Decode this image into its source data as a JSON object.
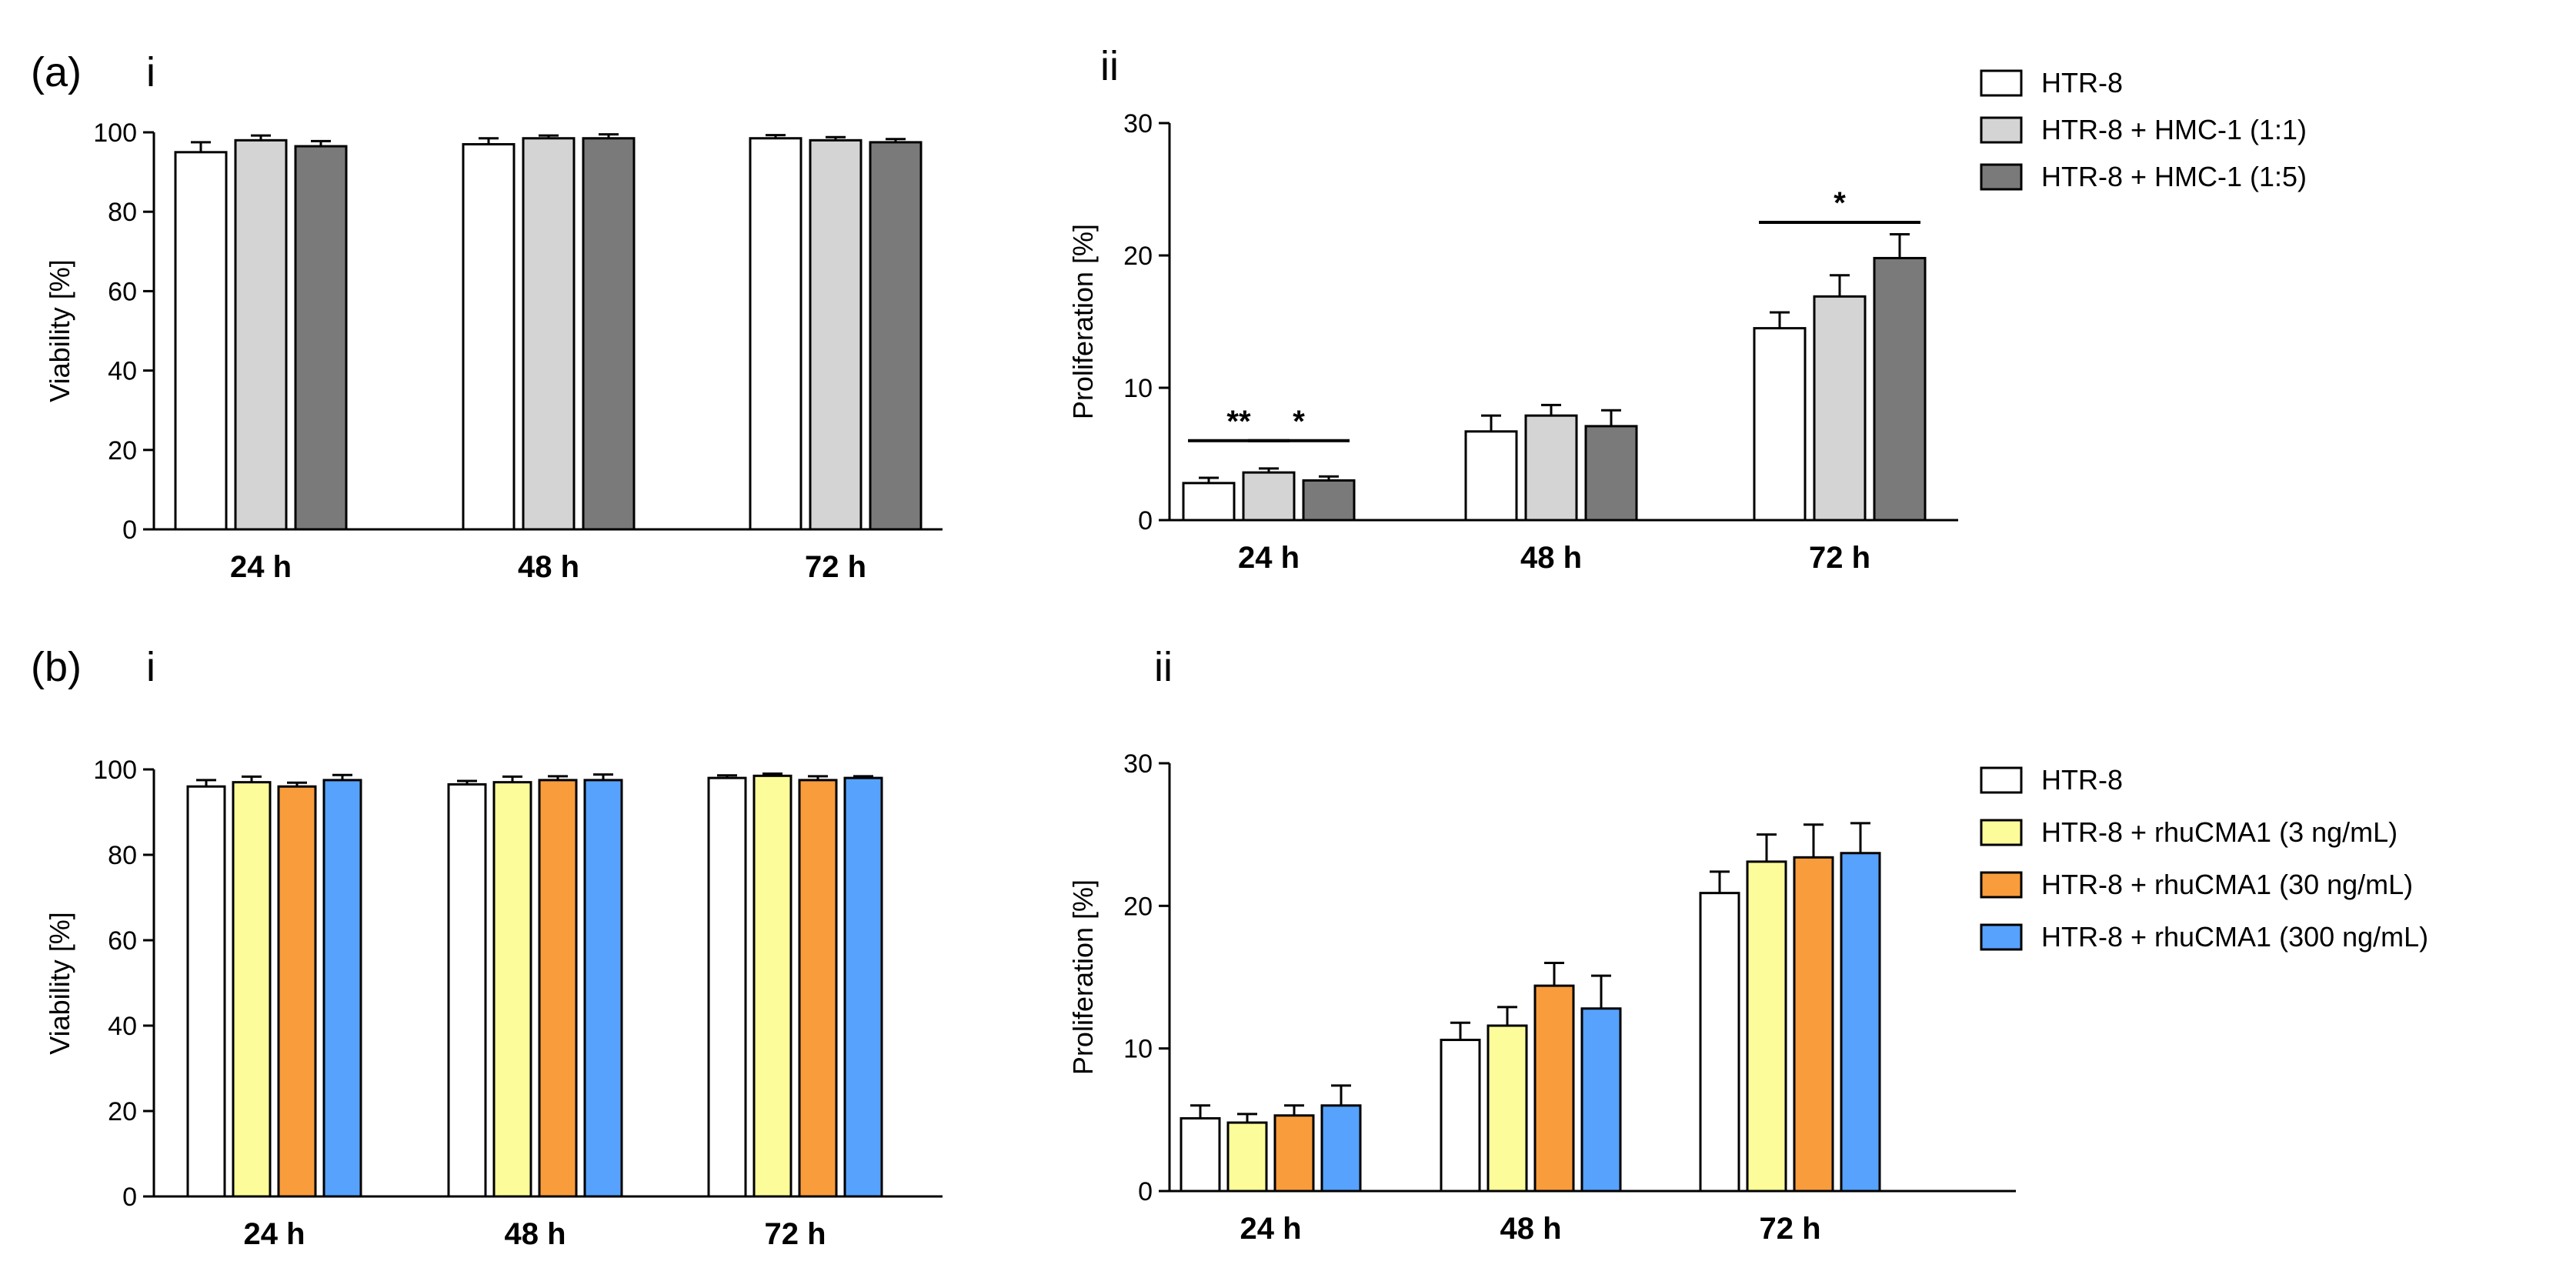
{
  "labels": {
    "a": "(a)",
    "b": "(b)",
    "sub_i": "i",
    "sub_ii": "ii"
  },
  "colors": {
    "htr8": "#ffffff",
    "hmc_1_1": "#d4d4d4",
    "hmc_1_5": "#7a7a7a",
    "rhu_3": "#fcfc9a",
    "rhu_30": "#f99c3c",
    "rhu_300": "#56a2fc",
    "stroke": "#000000"
  },
  "chart_data": [
    {
      "id": "a-i",
      "type": "bar",
      "title": "",
      "xlabel": "",
      "ylabel": "Viability [%]",
      "ylim": [
        0,
        100
      ],
      "yticks": [
        0,
        20,
        40,
        60,
        80,
        100
      ],
      "grid": false,
      "categories": [
        "24 h",
        "48 h",
        "72 h"
      ],
      "series": [
        {
          "name": "HTR-8",
          "colorKey": "htr8",
          "values": [
            95,
            97,
            98.5
          ],
          "errors": [
            2.5,
            1.5,
            0.8
          ]
        },
        {
          "name": "HTR-8 + HMC-1 (1:1)",
          "colorKey": "hmc_1_1",
          "values": [
            98,
            98.5,
            98
          ],
          "errors": [
            1.2,
            0.7,
            0.8
          ]
        },
        {
          "name": "HTR-8 + HMC-1 (1:5)",
          "colorKey": "hmc_1_5",
          "values": [
            96.5,
            98.5,
            97.5
          ],
          "errors": [
            1.3,
            1.0,
            0.8
          ]
        }
      ],
      "significance": [],
      "legend": null
    },
    {
      "id": "a-ii",
      "type": "bar",
      "title": "",
      "xlabel": "",
      "ylabel": "Proliferation [%]",
      "ylim": [
        0,
        30
      ],
      "yticks": [
        0,
        10,
        20,
        30
      ],
      "grid": false,
      "categories": [
        "24 h",
        "48 h",
        "72 h"
      ],
      "series": [
        {
          "name": "HTR-8",
          "colorKey": "htr8",
          "values": [
            2.8,
            6.7,
            14.5
          ],
          "errors": [
            0.4,
            1.2,
            1.2
          ]
        },
        {
          "name": "HTR-8 + HMC-1 (1:1)",
          "colorKey": "hmc_1_1",
          "values": [
            3.6,
            7.9,
            16.9
          ],
          "errors": [
            0.3,
            0.8,
            1.6
          ]
        },
        {
          "name": "HTR-8 + HMC-1 (1:5)",
          "colorKey": "hmc_1_5",
          "values": [
            3.0,
            7.1,
            19.8
          ],
          "errors": [
            0.3,
            1.2,
            1.8
          ]
        }
      ],
      "significance": [
        {
          "label": "**",
          "category": 0,
          "from": 0,
          "to": 1,
          "y": 6.0
        },
        {
          "label": "*",
          "category": 0,
          "from": 1,
          "to": 2,
          "y": 6.0
        },
        {
          "label": "*",
          "category": 2,
          "from": 0,
          "to": 2,
          "y": 22.5
        }
      ],
      "legend": {
        "placement": "top-right",
        "entries": [
          "HTR-8",
          "HTR-8 + HMC-1 (1:1)",
          "HTR-8 + HMC-1 (1:5)"
        ]
      }
    },
    {
      "id": "b-i",
      "type": "bar",
      "title": "",
      "xlabel": "",
      "ylabel": "Viability [%]",
      "ylim": [
        0,
        100
      ],
      "yticks": [
        0,
        20,
        40,
        60,
        80,
        100
      ],
      "grid": false,
      "categories": [
        "24 h",
        "48 h",
        "72 h"
      ],
      "series": [
        {
          "name": "HTR-8",
          "colorKey": "htr8",
          "values": [
            96,
            96.5,
            98
          ],
          "errors": [
            1.5,
            0.8,
            0.6
          ]
        },
        {
          "name": "HTR-8 + rhuCMA1 (3 ng/mL)",
          "colorKey": "rhu_3",
          "values": [
            97,
            97,
            98.5
          ],
          "errors": [
            1.3,
            1.3,
            0.5
          ]
        },
        {
          "name": "HTR-8 + rhuCMA1 (30 ng/mL)",
          "colorKey": "rhu_30",
          "values": [
            96,
            97.5,
            97.5
          ],
          "errors": [
            0.9,
            0.9,
            0.9
          ]
        },
        {
          "name": "HTR-8 + rhuCMA1 (300 ng/mL)",
          "colorKey": "rhu_300",
          "values": [
            97.5,
            97.5,
            98
          ],
          "errors": [
            1.2,
            1.3,
            0.4
          ]
        }
      ],
      "significance": [],
      "legend": null
    },
    {
      "id": "b-ii",
      "type": "bar",
      "title": "",
      "xlabel": "",
      "ylabel": "Proliferation  [%]",
      "ylim": [
        0,
        30
      ],
      "yticks": [
        0,
        10,
        20,
        30
      ],
      "grid": false,
      "categories": [
        "24 h",
        "48 h",
        "72 h"
      ],
      "series": [
        {
          "name": "HTR-8",
          "colorKey": "htr8",
          "values": [
            5.1,
            10.6,
            20.9
          ],
          "errors": [
            0.9,
            1.2,
            1.5
          ]
        },
        {
          "name": "HTR-8 + rhuCMA1 (3 ng/mL)",
          "colorKey": "rhu_3",
          "values": [
            4.8,
            11.6,
            23.1
          ],
          "errors": [
            0.6,
            1.3,
            1.9
          ]
        },
        {
          "name": "HTR-8 + rhuCMA1 (30 ng/mL)",
          "colorKey": "rhu_30",
          "values": [
            5.3,
            14.4,
            23.4
          ],
          "errors": [
            0.7,
            1.6,
            2.3
          ]
        },
        {
          "name": "HTR-8 + rhuCMA1 (300 ng/mL)",
          "colorKey": "rhu_300",
          "values": [
            6.0,
            12.8,
            23.7
          ],
          "errors": [
            1.4,
            2.3,
            2.1
          ]
        }
      ],
      "significance": [],
      "legend": {
        "placement": "right",
        "entries": [
          "HTR-8",
          "HTR-8 + rhuCMA1 (3 ng/mL)",
          "HTR-8 + rhuCMA1 (30 ng/mL)",
          "HTR-8 + rhuCMA1 (300 ng/mL)"
        ]
      }
    }
  ]
}
